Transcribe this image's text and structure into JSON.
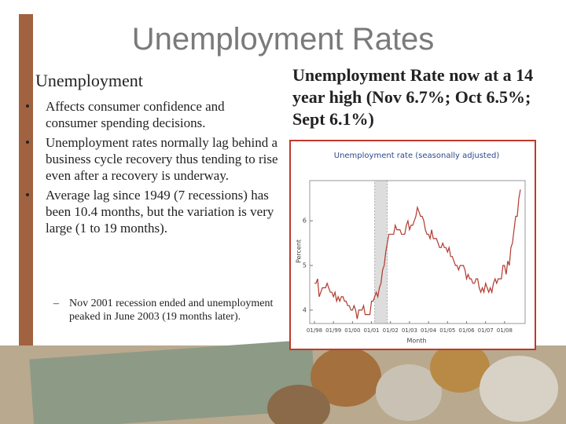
{
  "title": "Unemployment Rates",
  "left": {
    "heading": "Unemployment",
    "bullets": [
      "Affects consumer confidence and consumer spending decisions.",
      "Unemployment rates normally lag behind a business cycle recovery thus tending to rise even after a recovery is underway.",
      "Average lag since 1949 (7 recessions) has been 10.4 months, but the variation is very large (1 to 19 months)."
    ],
    "sub_bullets": [
      "Nov 2001 recession ended and unemployment peaked in June 2003 (19 months later)."
    ]
  },
  "right": {
    "heading": "Unemployment Rate now at a 14 year high (Nov 6.7%; Oct 6.5%; Sept 6.1%)"
  },
  "chart_data": {
    "type": "line",
    "title": "Unemployment rate (seasonally adjusted)",
    "x_label": "Month",
    "y_label": "Percent",
    "color": "#b03a2e",
    "categories": [
      "01/98",
      null,
      null,
      null,
      null,
      null,
      null,
      null,
      null,
      null,
      null,
      null,
      "01/99",
      null,
      null,
      null,
      null,
      null,
      null,
      null,
      null,
      null,
      null,
      null,
      "01/00",
      null,
      null,
      null,
      null,
      null,
      null,
      null,
      null,
      null,
      null,
      null,
      "01/01",
      null,
      null,
      null,
      null,
      null,
      null,
      null,
      null,
      null,
      null,
      null,
      "01/02",
      null,
      null,
      null,
      null,
      null,
      null,
      null,
      null,
      null,
      null,
      null,
      "01/03",
      null,
      null,
      null,
      null,
      null,
      null,
      null,
      null,
      null,
      null,
      null,
      "01/04",
      null,
      null,
      null,
      null,
      null,
      null,
      null,
      null,
      null,
      null,
      null,
      "01/05",
      null,
      null,
      null,
      null,
      null,
      null,
      null,
      null,
      null,
      null,
      null,
      "01/06",
      null,
      null,
      null,
      null,
      null,
      null,
      null,
      null,
      null,
      null,
      null,
      "01/07",
      null,
      null,
      null,
      null,
      null,
      null,
      null,
      null,
      null,
      null,
      null,
      "01/08",
      null,
      null,
      null,
      null,
      null,
      null,
      null,
      null,
      null,
      null
    ],
    "values": [
      4.6,
      4.6,
      4.7,
      4.3,
      4.4,
      4.5,
      4.5,
      4.5,
      4.6,
      4.5,
      4.4,
      4.4,
      4.3,
      4.4,
      4.2,
      4.3,
      4.2,
      4.3,
      4.3,
      4.2,
      4.2,
      4.1,
      4.1,
      4.0,
      4.0,
      4.1,
      4.0,
      3.8,
      4.0,
      4.0,
      4.0,
      4.1,
      3.9,
      3.9,
      3.9,
      3.9,
      4.2,
      4.2,
      4.3,
      4.4,
      4.3,
      4.5,
      4.6,
      4.9,
      5.0,
      5.3,
      5.5,
      5.7,
      5.7,
      5.7,
      5.7,
      5.9,
      5.8,
      5.8,
      5.8,
      5.7,
      5.7,
      5.7,
      5.9,
      6.0,
      5.8,
      5.9,
      5.9,
      6.0,
      6.1,
      6.3,
      6.2,
      6.1,
      6.1,
      6.0,
      5.8,
      5.7,
      5.7,
      5.6,
      5.8,
      5.6,
      5.6,
      5.6,
      5.5,
      5.4,
      5.4,
      5.5,
      5.4,
      5.4,
      5.3,
      5.4,
      5.2,
      5.2,
      5.1,
      5.0,
      5.0,
      4.9,
      5.0,
      5.0,
      5.0,
      4.9,
      4.7,
      4.8,
      4.7,
      4.7,
      4.6,
      4.6,
      4.7,
      4.7,
      4.5,
      4.4,
      4.5,
      4.4,
      4.6,
      4.5,
      4.4,
      4.5,
      4.4,
      4.6,
      4.7,
      4.6,
      4.7,
      4.7,
      4.7,
      5.0,
      5.0,
      4.8,
      5.1,
      5.0,
      5.4,
      5.5,
      5.8,
      6.1,
      6.1,
      6.5,
      6.7
    ],
    "ylim": [
      3.7,
      6.9
    ],
    "yticks": [
      4,
      5,
      6
    ]
  }
}
